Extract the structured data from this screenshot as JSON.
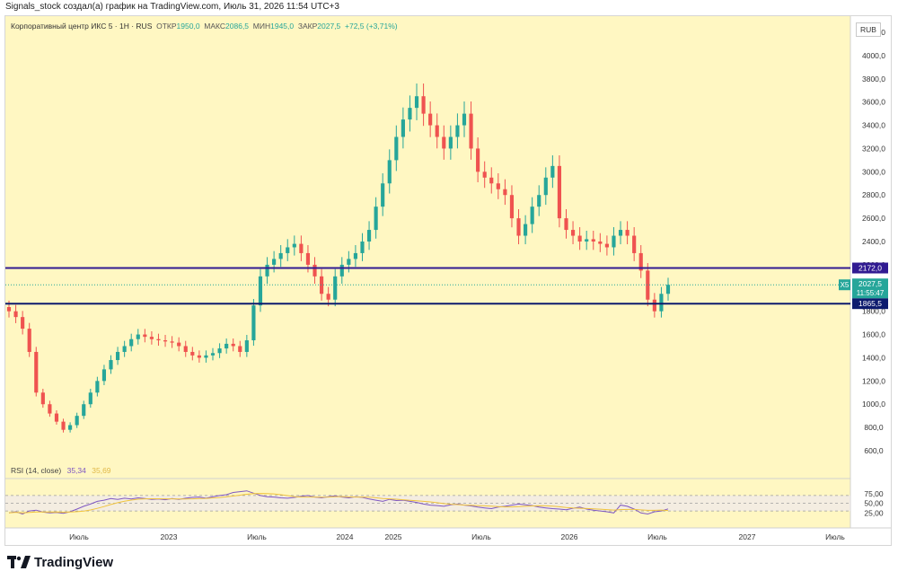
{
  "header": {
    "credit": "Signals_stock создал(а) график на TradingView.com, Июль 31, 2026 11:54 UTC+3"
  },
  "legend": {
    "symbol": "Корпоративный центр ИКС 5 · 1H · RUS",
    "open_label": "ОТКР",
    "open": "1950,0",
    "high_label": "МАКС",
    "high": "2086,5",
    "low_label": "МИН",
    "low": "1945,0",
    "close_label": "ЗАКР",
    "close": "2027,5",
    "change": "+72,5 (+3,71%)"
  },
  "currency": "RUB",
  "price_axis": {
    "ticks": [
      "4200,0",
      "4000,0",
      "3800,0",
      "3600,0",
      "3400,0",
      "3200,0",
      "3000,0",
      "2800,0",
      "2600,0",
      "2400,0",
      "2200,0",
      "1800,0",
      "1600,0",
      "1400,0",
      "1200,0",
      "1000,0",
      "800,0",
      "600,0"
    ]
  },
  "levels": [
    {
      "value": 2172.0,
      "label": "2172,0",
      "color": "#311b92"
    },
    {
      "value": 1865.5,
      "label": "1865,5",
      "color": "#0d1b6e"
    }
  ],
  "last_price": {
    "ticker": "X5",
    "value": 2027.5,
    "label": "2027,5",
    "countdown": "11:55:47",
    "color": "#26a69a"
  },
  "rsi": {
    "title": "RSI (14, close)",
    "value": "35,34",
    "ma_value": "35,69",
    "ticks": [
      "75,00",
      "50,00",
      "25,00"
    ],
    "line_color": "#7e57c2",
    "ma_color": "#f0c33c"
  },
  "time_axis": {
    "labels": [
      "Июль",
      "2023",
      "Июль",
      "2024",
      "2025",
      "Июль",
      "2026",
      "Июль",
      "2027",
      "Июль"
    ]
  },
  "colors": {
    "up": "#26a69a",
    "down": "#ef5350",
    "background": "#fff7c2"
  },
  "footer": {
    "brand": "TradingView"
  },
  "chart_data": {
    "type": "candlestick",
    "title": "Корпоративный центр ИКС 5 · 1H · RUS",
    "ylim": [
      600,
      4200
    ],
    "series": [
      {
        "name": "price",
        "close": [
          1800,
          1750,
          1650,
          1450,
          1100,
          1000,
          920,
          850,
          780,
          820,
          900,
          1000,
          1100,
          1200,
          1300,
          1380,
          1450,
          1500,
          1560,
          1600,
          1580,
          1560,
          1550,
          1540,
          1530,
          1500,
          1450,
          1420,
          1400,
          1420,
          1440,
          1480,
          1520,
          1500,
          1450,
          1550,
          1850,
          2100,
          2200,
          2250,
          2300,
          2350,
          2380,
          2300,
          2200,
          2100,
          1950,
          1900,
          2100,
          2200,
          2250,
          2300,
          2400,
          2500,
          2700,
          2900,
          3100,
          3300,
          3450,
          3550,
          3650,
          3500,
          3400,
          3300,
          3200,
          3300,
          3400,
          3500,
          3200,
          3000,
          2950,
          2900,
          2850,
          2800,
          2600,
          2450,
          2550,
          2700,
          2800,
          2950,
          3050,
          2600,
          2500,
          2450,
          2400,
          2420,
          2400,
          2380,
          2350,
          2450,
          2500,
          2450,
          2300,
          2150,
          1900,
          1800,
          1950,
          2027.5
        ]
      }
    ],
    "rsi": [
      25,
      28,
      22,
      30,
      32,
      27,
      25,
      26,
      24,
      28,
      35,
      42,
      48,
      55,
      58,
      62,
      60,
      63,
      61,
      64,
      62,
      60,
      61,
      59,
      62,
      60,
      63,
      65,
      66,
      63,
      67,
      70,
      72,
      78,
      80,
      82,
      76,
      70,
      67,
      66,
      64,
      63,
      65,
      68,
      70,
      66,
      64,
      67,
      69,
      66,
      64,
      67,
      65,
      61,
      58,
      55,
      60,
      57,
      58,
      55,
      52,
      48,
      45,
      44,
      42,
      46,
      48,
      45,
      43,
      40,
      38,
      36,
      40,
      42,
      45,
      48,
      46,
      44,
      40,
      38,
      36,
      35,
      33,
      37,
      40,
      35,
      32,
      30,
      28,
      25,
      45,
      42,
      35,
      25,
      22,
      28,
      30,
      35.34
    ]
  }
}
